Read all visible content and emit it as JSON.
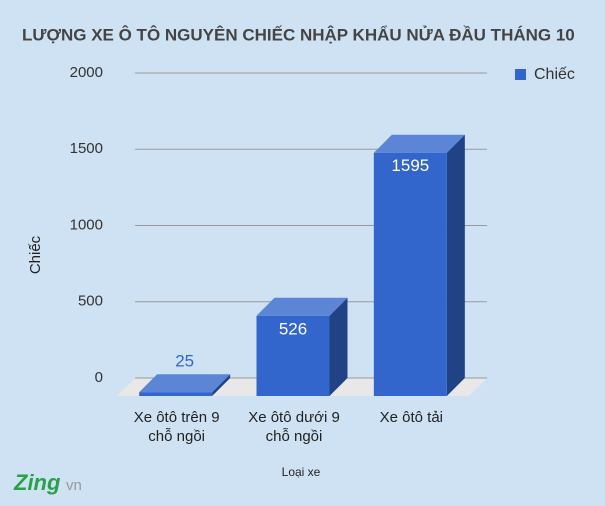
{
  "chart_data": {
    "type": "bar3d",
    "title": "LƯỢNG XE Ô TÔ NGUYÊN CHIẾC NHẬP KHẨU NỬA ĐẦU THÁNG 10",
    "categories": [
      "Xe ôtô trên 9 chỗ ngồi",
      "Xe ôtô dưới 9 chỗ ngồi",
      "Xe ôtô tải"
    ],
    "series": [
      {
        "name": "Chiếc",
        "color": "#3366cc",
        "values": [
          25,
          526,
          1595
        ]
      }
    ],
    "ylim": [
      0,
      2000
    ],
    "yticks": [
      0,
      500,
      1000,
      1500,
      2000
    ],
    "grid": true,
    "y_label": "Chiếc",
    "x_label": "Loại xe",
    "legend": "top-right"
  },
  "watermark": {
    "brand": "Zing",
    "suffix": "vn"
  }
}
